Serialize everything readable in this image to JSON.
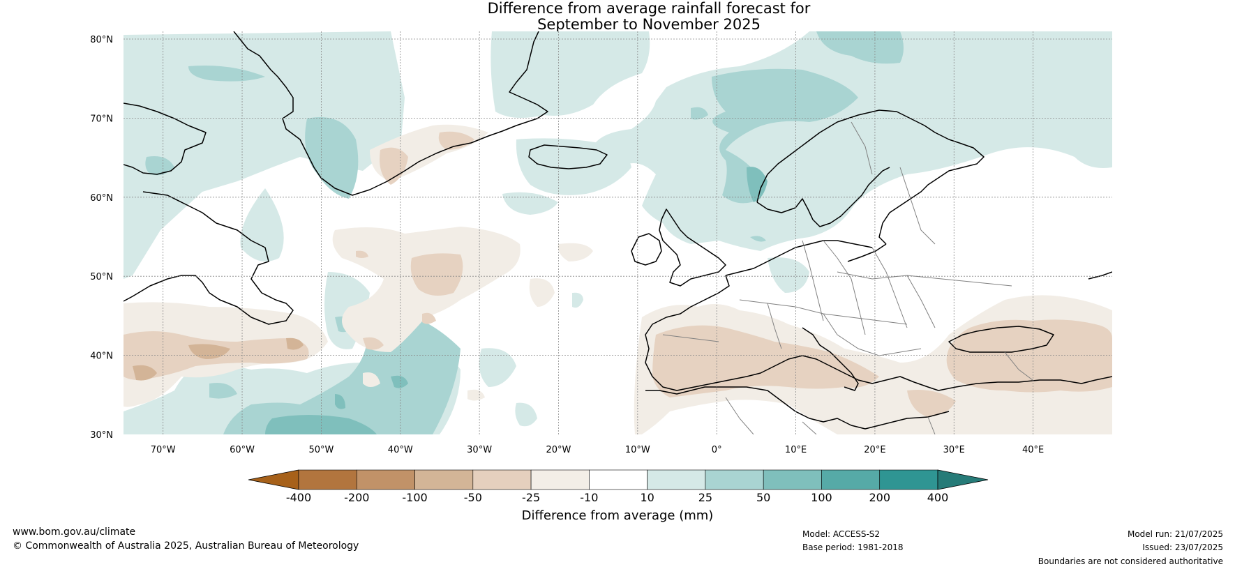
{
  "title": {
    "line1": "Difference from average rainfall forecast for",
    "line2": "September to November 2025"
  },
  "map": {
    "lon_range": [
      -75,
      50
    ],
    "lat_range": [
      30,
      81
    ],
    "lat_ticks": [
      "80°N",
      "70°N",
      "60°N",
      "50°N",
      "40°N",
      "30°N"
    ],
    "lon_ticks": [
      "70°W",
      "60°W",
      "50°W",
      "40°W",
      "30°W",
      "20°W",
      "10°W",
      "0°",
      "10°E",
      "20°E",
      "30°E",
      "40°E"
    ],
    "grid": true,
    "dry_colors": [
      "#a6611a",
      "#bf8f62",
      "#d3b497",
      "#e6d2c1",
      "#f2ede6"
    ],
    "wet_colors": [
      "#d5e9e7",
      "#a9d4d2",
      "#7fbfbc",
      "#56aaa7",
      "#2f9593"
    ]
  },
  "colorbar": {
    "labels": [
      "-400",
      "-200",
      "-100",
      "-50",
      "-25",
      "-10",
      "10",
      "25",
      "50",
      "100",
      "200",
      "400"
    ],
    "colors": [
      "#a7611a",
      "#b2753e",
      "#c19268",
      "#d3b597",
      "#e5d0be",
      "#f3eee7",
      "#ffffff",
      "#d5e9e7",
      "#a9d4d2",
      "#7fbfbc",
      "#56aaa7",
      "#2f9593",
      "#267b78"
    ],
    "axis_label": "Difference from average (mm)"
  },
  "footer": {
    "website": "www.bom.gov.au/climate",
    "copyright": "© Commonwealth of Australia 2025, Australian Bureau of Meteorology",
    "model": "Model: ACCESS-S2",
    "base_period": "Base period: 1981-2018",
    "model_run": "Model run: 21/07/2025",
    "issued": "Issued: 23/07/2025",
    "disclaimer": "Boundaries are not considered authoritative"
  }
}
